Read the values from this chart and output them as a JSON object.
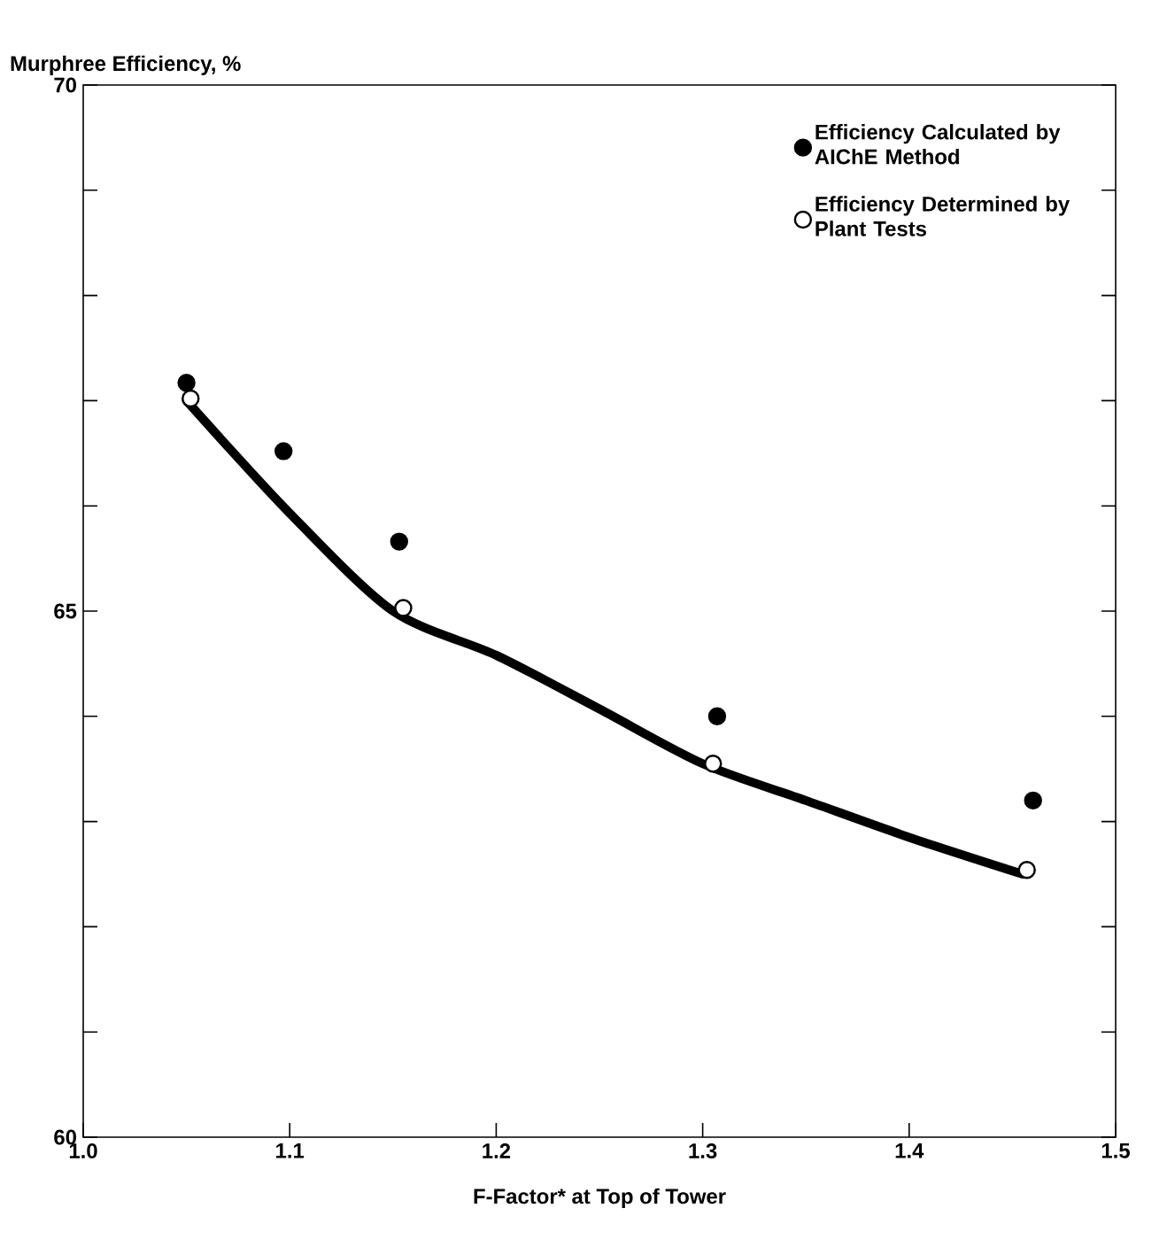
{
  "chart_data": {
    "type": "scatter",
    "xlabel": "F-Factor* at Top of Tower",
    "ylabel": "Murphree Efficiency, %",
    "xlim": [
      1.0,
      1.5
    ],
    "ylim": [
      60,
      70
    ],
    "xticks": [
      {
        "value": 1.0,
        "label": "1.0"
      },
      {
        "value": 1.1,
        "label": "1.1"
      },
      {
        "value": 1.2,
        "label": "1.2"
      },
      {
        "value": 1.3,
        "label": "1.3"
      },
      {
        "value": 1.4,
        "label": "1.4"
      },
      {
        "value": 1.5,
        "label": "1.5"
      }
    ],
    "yticks": [
      60,
      {
        "value": 61,
        "label": null
      },
      {
        "value": 62,
        "label": null
      },
      {
        "value": 63,
        "label": null
      },
      {
        "value": 64,
        "label": null
      },
      65,
      {
        "value": 66,
        "label": null
      },
      {
        "value": 67,
        "label": null
      },
      {
        "value": 68,
        "label": null
      },
      {
        "value": 69,
        "label": null
      },
      70
    ],
    "grid": false,
    "legend": "top right",
    "series": [
      {
        "type": "line",
        "color": "#000000",
        "marker": "none",
        "x": [
          1.05,
          1.1,
          1.15,
          1.2,
          1.25,
          1.3,
          1.35,
          1.4,
          1.455
        ],
        "values": [
          67.0,
          65.93,
          65.0,
          64.58,
          64.07,
          63.55,
          63.2,
          62.85,
          62.5
        ]
      },
      {
        "name": "Efficiency Calculated by AIChE Method",
        "color": "#000000",
        "marker": "circle",
        "x": [
          1.05,
          1.097,
          1.153,
          1.307,
          1.46
        ],
        "values": [
          67.17,
          66.52,
          65.66,
          64.0,
          63.2
        ]
      },
      {
        "name": "Efficiency Determined by Plant Tests",
        "color": "#ffffff",
        "marker": "circle",
        "x": [
          1.052,
          1.155,
          1.305,
          1.457
        ],
        "values": [
          67.02,
          65.03,
          63.55,
          62.54
        ]
      }
    ]
  }
}
